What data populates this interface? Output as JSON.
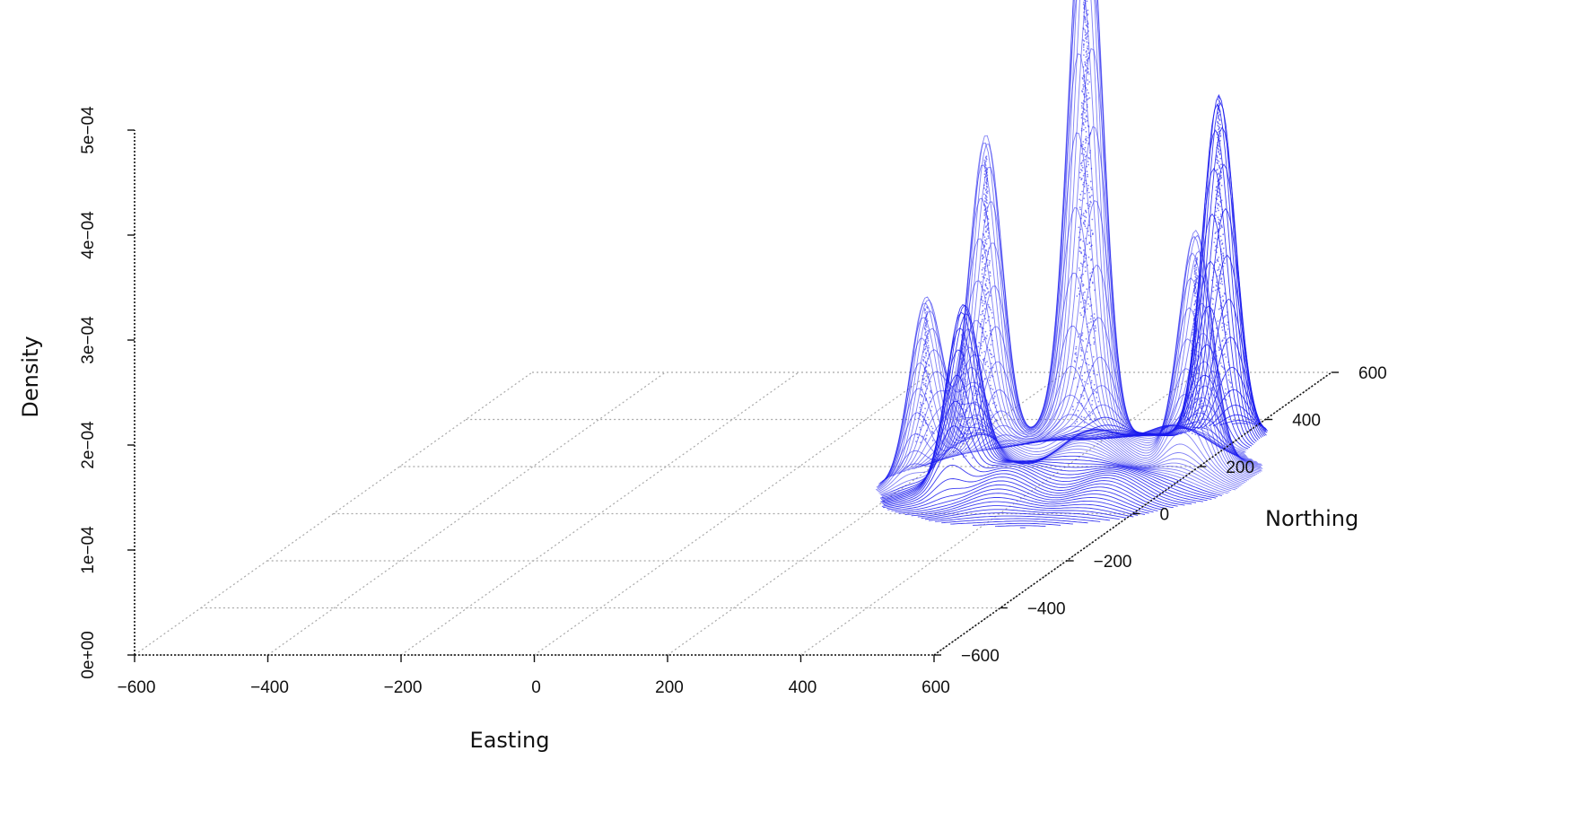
{
  "chart_data": {
    "type": "surface3d",
    "title": "",
    "xlabel": "Easting",
    "ylabel": "Northing",
    "zlabel": "Density",
    "xlim": [
      -600,
      600
    ],
    "ylim": [
      -600,
      600
    ],
    "zlim": [
      0,
      0.0005
    ],
    "x_ticks": [
      "−600",
      "−400",
      "−200",
      "0",
      "200",
      "400",
      "600"
    ],
    "y_ticks": [
      "−600",
      "−400",
      "−200",
      "0",
      "200",
      "400",
      "600"
    ],
    "z_ticks": [
      "0e+00",
      "1e−04",
      "2e−04",
      "3e−04",
      "4e−04",
      "5e−04"
    ],
    "grid": true,
    "surface_color": "#1a1aee",
    "peaks": [
      {
        "easting": 430,
        "northing": 200,
        "density": 0.00054
      },
      {
        "easting": 290,
        "northing": 180,
        "density": 0.0003
      },
      {
        "easting": 230,
        "northing": 120,
        "density": 0.00017
      },
      {
        "easting": 320,
        "northing": 50,
        "density": 0.00016
      },
      {
        "easting": 580,
        "northing": 300,
        "density": 0.00033
      },
      {
        "easting": 620,
        "northing": 150,
        "density": 0.00021
      }
    ],
    "base_density": 4e-05
  }
}
